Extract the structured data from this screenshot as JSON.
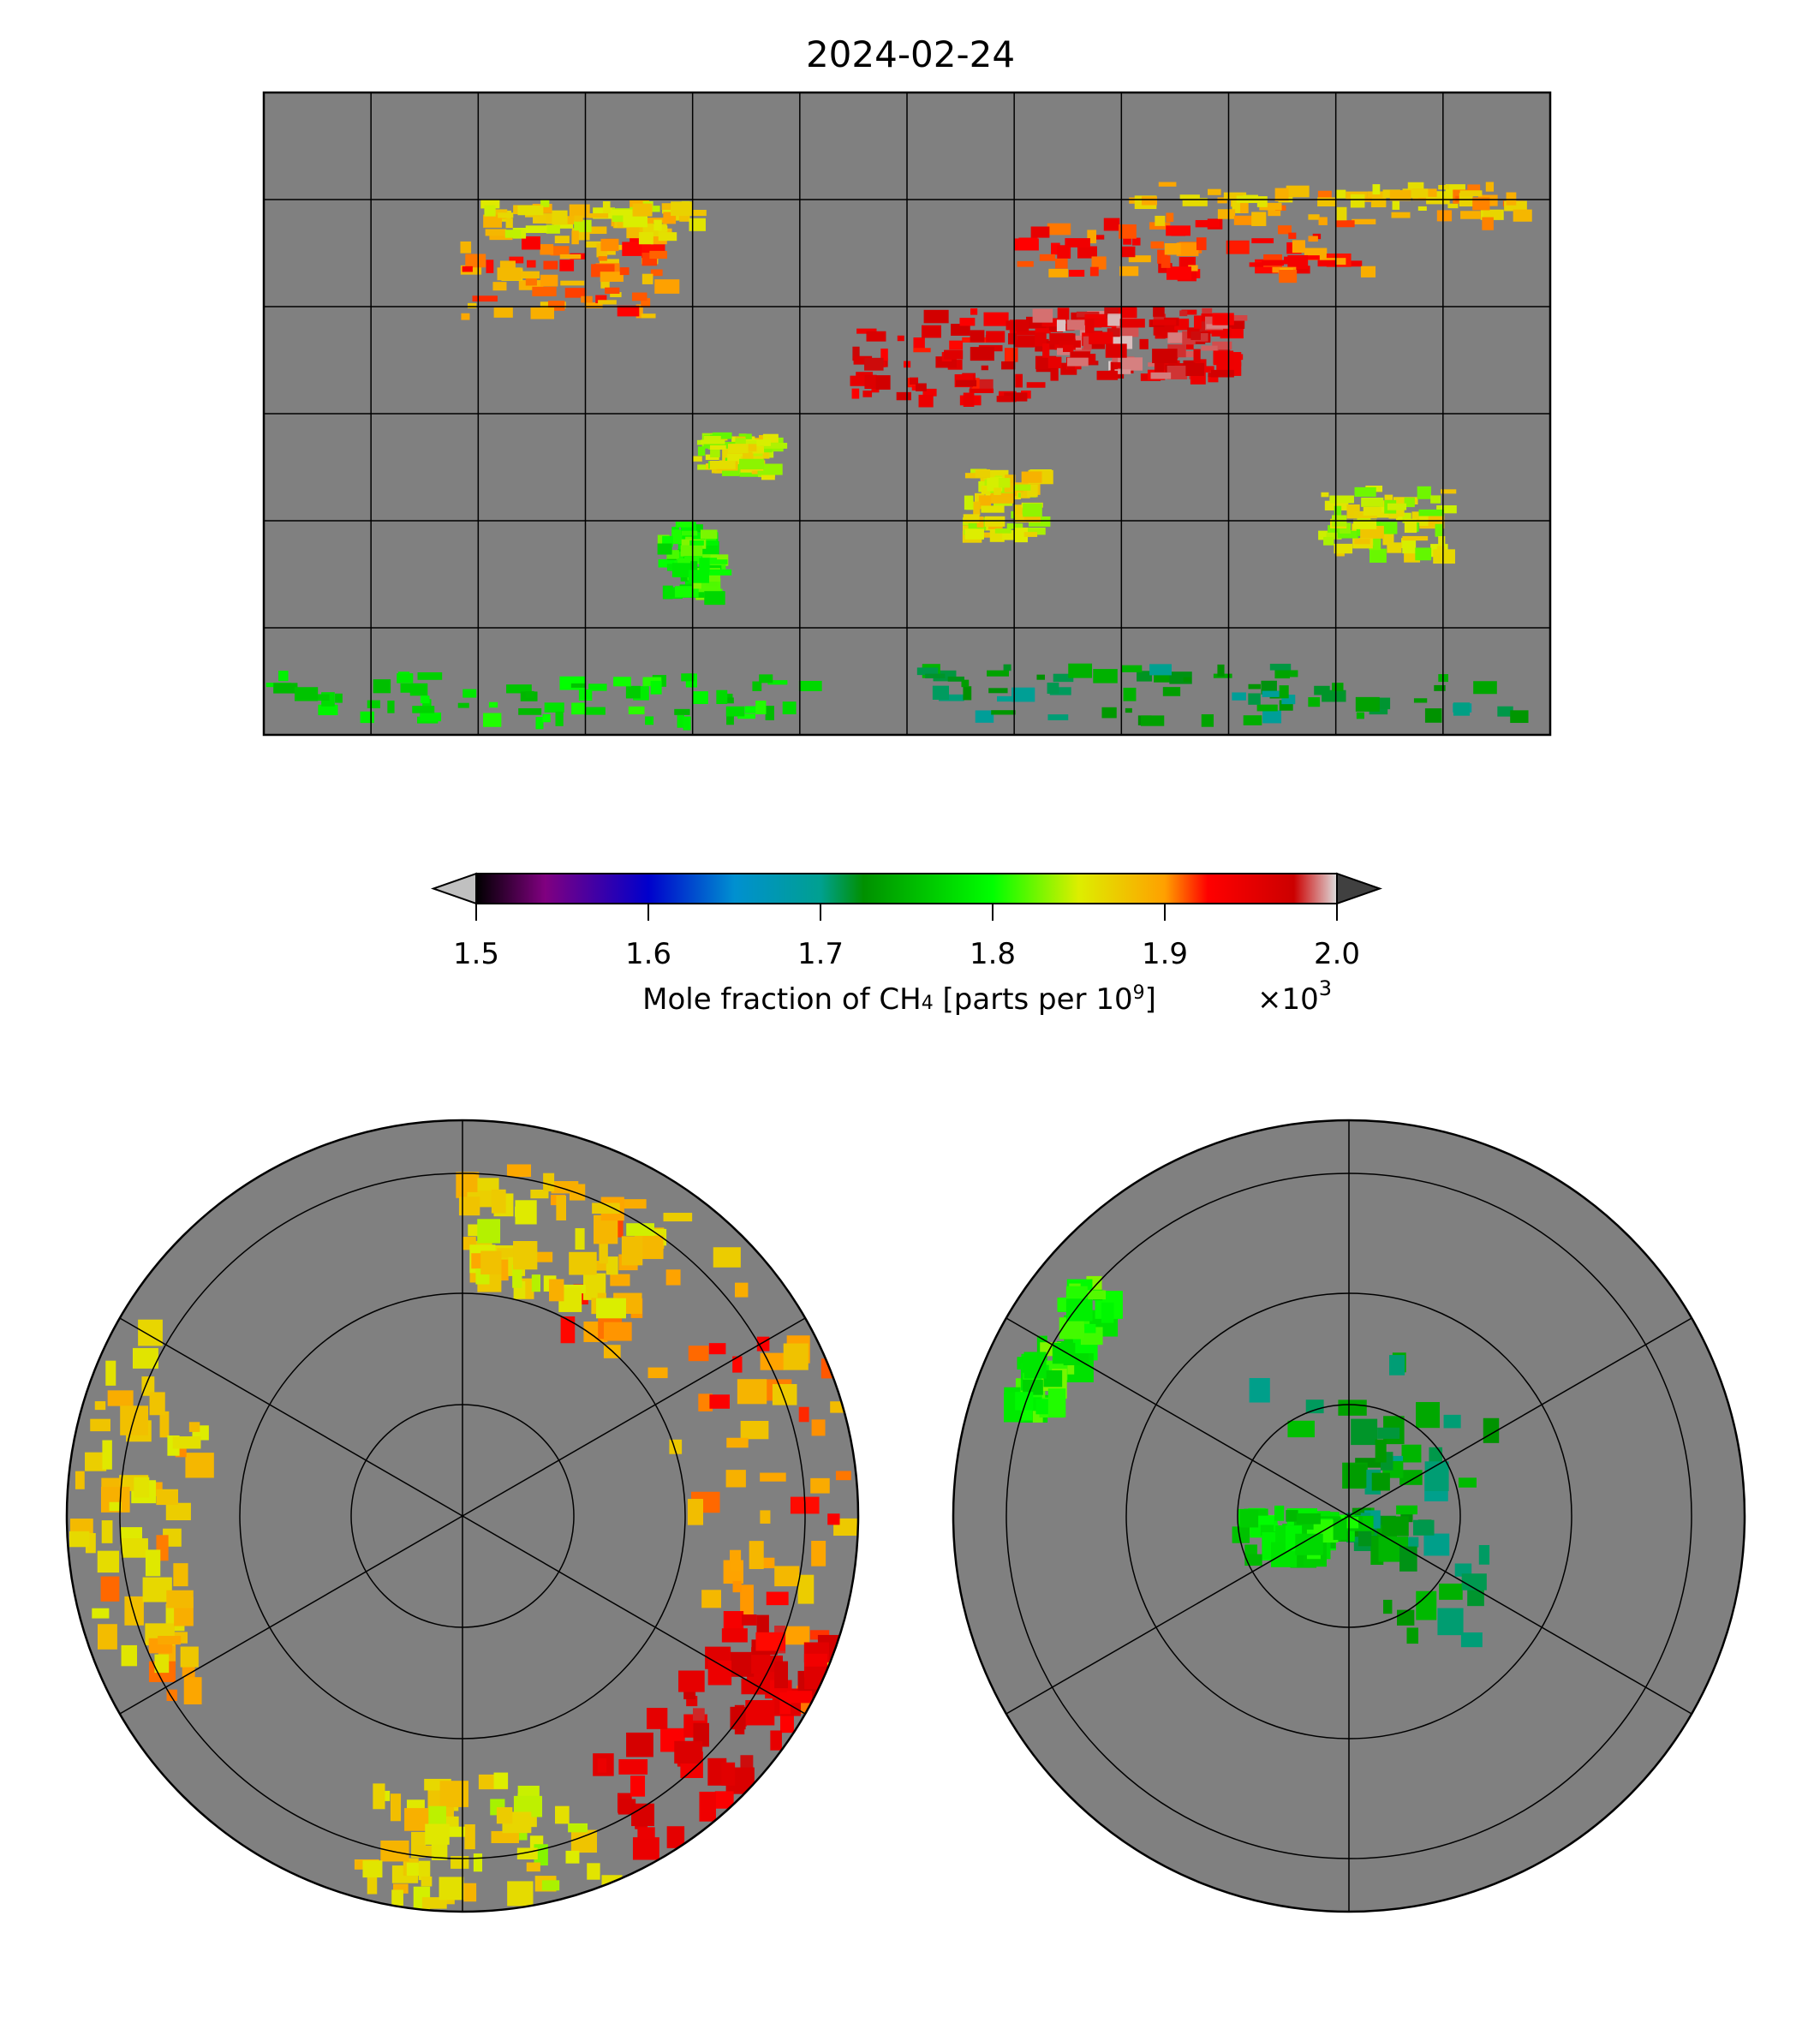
{
  "title": "2024-02-24",
  "colors": {
    "ocean_nodata": "#808080",
    "coast": "#000000"
  },
  "chart_data": {
    "type": "heatmap",
    "title": "2024-02-24",
    "variable": "Mole fraction of CH4",
    "colorbar": {
      "label_main": "Mole fraction of CH",
      "label_sub": "4",
      "label_rest": " [parts per 10",
      "label_sup": "9",
      "label_end": "]",
      "multiplier": "×10",
      "multiplier_exp": "3",
      "range": [
        1.5,
        2.0
      ],
      "ticks": [
        "1.5",
        "1.6",
        "1.7",
        "1.8",
        "1.9",
        "2.0"
      ],
      "extend": "both",
      "stops": [
        {
          "v": 0.0,
          "c": "#000000"
        },
        {
          "v": 0.08,
          "c": "#800080"
        },
        {
          "v": 0.2,
          "c": "#0000cc"
        },
        {
          "v": 0.3,
          "c": "#0090d0"
        },
        {
          "v": 0.4,
          "c": "#00a090"
        },
        {
          "v": 0.45,
          "c": "#009000"
        },
        {
          "v": 0.6,
          "c": "#00ff00"
        },
        {
          "v": 0.7,
          "c": "#ddee00"
        },
        {
          "v": 0.8,
          "c": "#ffa000"
        },
        {
          "v": 0.85,
          "c": "#ff0000"
        },
        {
          "v": 0.95,
          "c": "#cc0000"
        },
        {
          "v": 1.0,
          "c": "#dddddd"
        }
      ],
      "under_color": "#c0c0c0",
      "over_color": "#404040"
    },
    "panels": [
      {
        "name": "global",
        "projection": "plate-carree",
        "grid_deg": 30
      },
      {
        "name": "north-polar",
        "projection": "north-polar-stereo",
        "rings_lat": [
          80,
          60,
          40,
          20
        ],
        "meridian_step_deg": 60
      },
      {
        "name": "south-polar",
        "projection": "south-polar-stereo",
        "rings_lat": [
          -80,
          -60,
          -40,
          -20
        ],
        "meridian_step_deg": 60
      }
    ],
    "regions": [
      {
        "lon": [
          -125,
          -70
        ],
        "lat": [
          28,
          50
        ],
        "value": 1.9
      },
      {
        "lon": [
          -120,
          -60
        ],
        "lat": [
          50,
          60
        ],
        "value": 1.87
      },
      {
        "lon": [
          -17,
          35
        ],
        "lat": [
          5,
          30
        ],
        "value": 1.95
      },
      {
        "lon": [
          35,
          60
        ],
        "lat": [
          12,
          30
        ],
        "value": 1.97
      },
      {
        "lon": [
          65,
          90
        ],
        "lat": [
          10,
          30
        ],
        "value": 1.96
      },
      {
        "lon": [
          30,
          130
        ],
        "lat": [
          40,
          55
        ],
        "value": 1.92
      },
      {
        "lon": [
          60,
          170
        ],
        "lat": [
          55,
          65
        ],
        "value": 1.88
      },
      {
        "lon": [
          115,
          150
        ],
        "lat": [
          -38,
          -20
        ],
        "value": 1.85
      },
      {
        "lon": [
          15,
          35
        ],
        "lat": [
          -34,
          -15
        ],
        "value": 1.86
      },
      {
        "lon": [
          -70,
          -55
        ],
        "lat": [
          -50,
          -30
        ],
        "value": 1.8
      },
      {
        "lon": [
          -60,
          -40
        ],
        "lat": [
          -15,
          -5
        ],
        "value": 1.85
      },
      {
        "lon": [
          -180,
          -30
        ],
        "lat": [
          -85,
          -72
        ],
        "value": 1.78
      },
      {
        "lon": [
          0,
          170
        ],
        "lat": [
          -85,
          -70
        ],
        "value": 1.72
      }
    ]
  }
}
